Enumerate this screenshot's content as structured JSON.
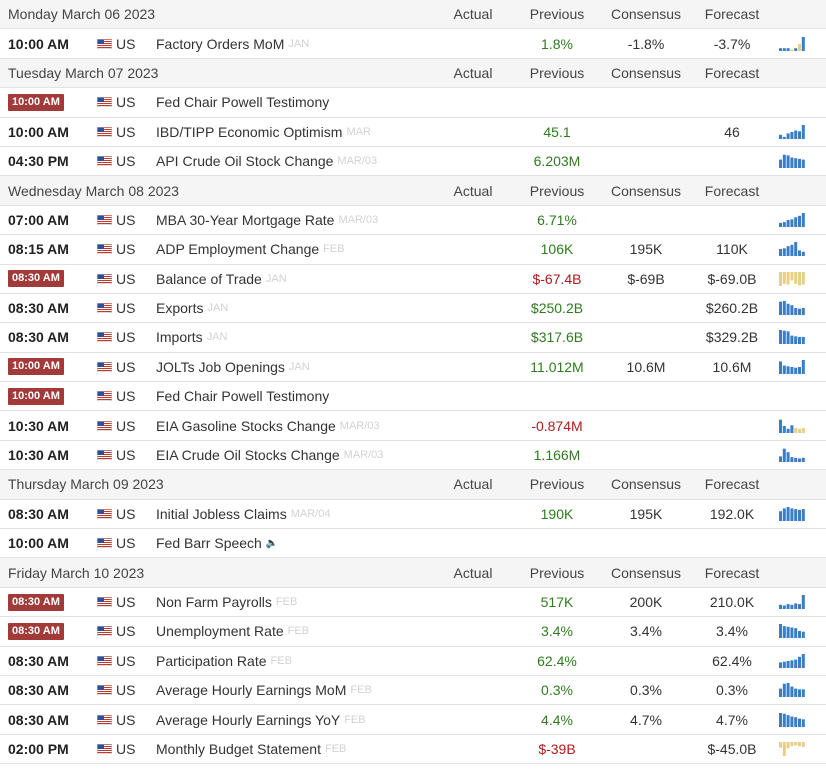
{
  "columns": {
    "actual": "Actual",
    "previous": "Previous",
    "consensus": "Consensus",
    "forecast": "Forecast"
  },
  "days": [
    {
      "title": "Monday March 06 2023",
      "events": [
        {
          "time": "10:00 AM",
          "badge": false,
          "country": "US",
          "name": "Factory Orders MoM",
          "ref": "JAN",
          "previous": "1.8%",
          "previous_tone": "pos",
          "consensus": "-1.8%",
          "forecast": "-3.7%",
          "spark": {
            "values": [
              0.2,
              0.2,
              0.2,
              0.12,
              0.2,
              0.5,
              1.0
            ],
            "colors": [
              "#3b7dc4",
              "#3b7dc4",
              "#3b7dc4",
              "#e9cf86",
              "#3b7dc4",
              "#e9cf86",
              "#3b7dc4"
            ]
          }
        }
      ]
    },
    {
      "title": "Tuesday March 07 2023",
      "events": [
        {
          "time": "10:00 AM",
          "badge": true,
          "country": "US",
          "name": "Fed Chair Powell Testimony",
          "ref": "",
          "previous": "",
          "previous_tone": "",
          "consensus": "",
          "forecast": "",
          "spark": null
        },
        {
          "time": "10:00 AM",
          "badge": false,
          "country": "US",
          "name": "IBD/TIPP Economic Optimism",
          "ref": "MAR",
          "previous": "45.1",
          "previous_tone": "pos",
          "consensus": "",
          "forecast": "46",
          "spark": {
            "values": [
              0.3,
              0.15,
              0.4,
              0.5,
              0.6,
              0.55,
              1.0
            ],
            "colors": [
              "#3b7dc4",
              "#3b7dc4",
              "#3b7dc4",
              "#3b7dc4",
              "#3b7dc4",
              "#3b7dc4",
              "#3b7dc4"
            ]
          }
        },
        {
          "time": "04:30 PM",
          "badge": false,
          "country": "US",
          "name": "API Crude Oil Stock Change",
          "ref": "MAR/03",
          "previous": "6.203M",
          "previous_tone": "pos",
          "consensus": "",
          "forecast": "",
          "spark": {
            "values": [
              0.6,
              0.95,
              0.9,
              0.75,
              0.7,
              0.65,
              0.6
            ],
            "colors": [
              "#3b7dc4",
              "#3b7dc4",
              "#3b7dc4",
              "#3b7dc4",
              "#3b7dc4",
              "#3b7dc4",
              "#3b7dc4"
            ]
          }
        }
      ]
    },
    {
      "title": "Wednesday March 08 2023",
      "events": [
        {
          "time": "07:00 AM",
          "badge": false,
          "country": "US",
          "name": "MBA 30-Year Mortgage Rate",
          "ref": "MAR/03",
          "previous": "6.71%",
          "previous_tone": "pos",
          "consensus": "",
          "forecast": "",
          "spark": {
            "values": [
              0.3,
              0.35,
              0.5,
              0.55,
              0.7,
              0.8,
              1.0
            ],
            "colors": [
              "#3b7dc4",
              "#3b7dc4",
              "#3b7dc4",
              "#3b7dc4",
              "#3b7dc4",
              "#3b7dc4",
              "#3b7dc4"
            ]
          }
        },
        {
          "time": "08:15 AM",
          "badge": false,
          "country": "US",
          "name": "ADP Employment Change",
          "ref": "FEB",
          "previous": "106K",
          "previous_tone": "pos",
          "consensus": "195K",
          "forecast": "110K",
          "spark": {
            "values": [
              0.5,
              0.55,
              0.7,
              0.8,
              1.0,
              0.4,
              0.3
            ],
            "colors": [
              "#3b7dc4",
              "#3b7dc4",
              "#3b7dc4",
              "#3b7dc4",
              "#3b7dc4",
              "#3b7dc4",
              "#3b7dc4"
            ]
          }
        },
        {
          "time": "08:30 AM",
          "badge": true,
          "country": "US",
          "name": "Balance of Trade",
          "ref": "JAN",
          "previous": "$-67.4B",
          "previous_tone": "neg",
          "consensus": "$-69B",
          "forecast": "$-69.0B",
          "spark": {
            "values": [
              1.0,
              0.85,
              0.9,
              0.6,
              0.85,
              0.95,
              0.9
            ],
            "colors": [
              "#e9cf86",
              "#e9cf86",
              "#e9cf86",
              "#e9cf86",
              "#e9cf86",
              "#e9cf86",
              "#e9cf86"
            ],
            "downward": true
          }
        },
        {
          "time": "08:30 AM",
          "badge": false,
          "country": "US",
          "name": "Exports",
          "ref": "JAN",
          "previous": "$250.2B",
          "previous_tone": "pos",
          "consensus": "",
          "forecast": "$260.2B",
          "spark": {
            "values": [
              0.95,
              1.0,
              0.8,
              0.7,
              0.5,
              0.45,
              0.5
            ],
            "colors": [
              "#3b7dc4",
              "#3b7dc4",
              "#3b7dc4",
              "#3b7dc4",
              "#3b7dc4",
              "#3b7dc4",
              "#3b7dc4"
            ]
          }
        },
        {
          "time": "08:30 AM",
          "badge": false,
          "country": "US",
          "name": "Imports",
          "ref": "JAN",
          "previous": "$317.6B",
          "previous_tone": "pos",
          "consensus": "",
          "forecast": "$329.2B",
          "spark": {
            "values": [
              1.0,
              0.95,
              0.9,
              0.6,
              0.55,
              0.5,
              0.5
            ],
            "colors": [
              "#3b7dc4",
              "#3b7dc4",
              "#3b7dc4",
              "#3b7dc4",
              "#3b7dc4",
              "#3b7dc4",
              "#3b7dc4"
            ]
          }
        },
        {
          "time": "10:00 AM",
          "badge": true,
          "country": "US",
          "name": "JOLTs Job Openings",
          "ref": "JAN",
          "previous": "11.012M",
          "previous_tone": "pos",
          "consensus": "10.6M",
          "forecast": "10.6M",
          "spark": {
            "values": [
              0.9,
              0.6,
              0.55,
              0.5,
              0.45,
              0.5,
              1.0
            ],
            "colors": [
              "#3b7dc4",
              "#3b7dc4",
              "#3b7dc4",
              "#3b7dc4",
              "#3b7dc4",
              "#3b7dc4",
              "#3b7dc4"
            ]
          }
        },
        {
          "time": "10:00 AM",
          "badge": true,
          "country": "US",
          "name": "Fed Chair Powell Testimony",
          "ref": "",
          "previous": "",
          "previous_tone": "",
          "consensus": "",
          "forecast": "",
          "spark": null
        },
        {
          "time": "10:30 AM",
          "badge": false,
          "country": "US",
          "name": "EIA Gasoline Stocks Change",
          "ref": "MAR/03",
          "previous": "-0.874M",
          "previous_tone": "neg",
          "consensus": "",
          "forecast": "",
          "spark": {
            "values": [
              0.95,
              0.5,
              0.3,
              0.55,
              0.35,
              0.3,
              0.35
            ],
            "colors": [
              "#3b7dc4",
              "#3b7dc4",
              "#3b7dc4",
              "#3b7dc4",
              "#e9cf86",
              "#e9cf86",
              "#e9cf86"
            ]
          }
        },
        {
          "time": "10:30 AM",
          "badge": false,
          "country": "US",
          "name": "EIA Crude Oil Stocks Change",
          "ref": "MAR/03",
          "previous": "1.166M",
          "previous_tone": "pos",
          "consensus": "",
          "forecast": "",
          "spark": {
            "values": [
              0.4,
              0.95,
              0.7,
              0.35,
              0.3,
              0.25,
              0.3
            ],
            "colors": [
              "#3b7dc4",
              "#3b7dc4",
              "#3b7dc4",
              "#3b7dc4",
              "#3b7dc4",
              "#3b7dc4",
              "#3b7dc4"
            ]
          }
        }
      ]
    },
    {
      "title": "Thursday March 09 2023",
      "events": [
        {
          "time": "08:30 AM",
          "badge": false,
          "country": "US",
          "name": "Initial Jobless Claims",
          "ref": "MAR/04",
          "previous": "190K",
          "previous_tone": "pos",
          "consensus": "195K",
          "forecast": "192.0K",
          "spark": {
            "values": [
              0.7,
              0.9,
              1.0,
              0.9,
              0.85,
              0.8,
              0.85
            ],
            "colors": [
              "#3b7dc4",
              "#3b7dc4",
              "#3b7dc4",
              "#3b7dc4",
              "#3b7dc4",
              "#3b7dc4",
              "#3b7dc4"
            ]
          }
        },
        {
          "time": "10:00 AM",
          "badge": false,
          "country": "US",
          "name": "Fed Barr Speech",
          "ref": "",
          "speaker": true,
          "previous": "",
          "previous_tone": "",
          "consensus": "",
          "forecast": "",
          "spark": null
        }
      ]
    },
    {
      "title": "Friday March 10 2023",
      "events": [
        {
          "time": "08:30 AM",
          "badge": true,
          "country": "US",
          "name": "Non Farm Payrolls",
          "ref": "FEB",
          "previous": "517K",
          "previous_tone": "pos",
          "consensus": "200K",
          "forecast": "210.0K",
          "spark": {
            "values": [
              0.3,
              0.25,
              0.35,
              0.3,
              0.4,
              0.35,
              1.0
            ],
            "colors": [
              "#3b7dc4",
              "#3b7dc4",
              "#3b7dc4",
              "#3b7dc4",
              "#3b7dc4",
              "#3b7dc4",
              "#3b7dc4"
            ]
          }
        },
        {
          "time": "08:30 AM",
          "badge": true,
          "country": "US",
          "name": "Unemployment Rate",
          "ref": "FEB",
          "previous": "3.4%",
          "previous_tone": "pos",
          "consensus": "3.4%",
          "forecast": "3.4%",
          "spark": {
            "values": [
              1.0,
              0.85,
              0.8,
              0.75,
              0.7,
              0.5,
              0.45
            ],
            "colors": [
              "#3b7dc4",
              "#3b7dc4",
              "#3b7dc4",
              "#3b7dc4",
              "#3b7dc4",
              "#3b7dc4",
              "#3b7dc4"
            ]
          }
        },
        {
          "time": "08:30 AM",
          "badge": false,
          "country": "US",
          "name": "Participation Rate",
          "ref": "FEB",
          "previous": "62.4%",
          "previous_tone": "pos",
          "consensus": "",
          "forecast": "62.4%",
          "spark": {
            "values": [
              0.4,
              0.45,
              0.5,
              0.55,
              0.6,
              0.8,
              1.0
            ],
            "colors": [
              "#3b7dc4",
              "#3b7dc4",
              "#3b7dc4",
              "#3b7dc4",
              "#3b7dc4",
              "#3b7dc4",
              "#3b7dc4"
            ]
          }
        },
        {
          "time": "08:30 AM",
          "badge": false,
          "country": "US",
          "name": "Average Hourly Earnings MoM",
          "ref": "FEB",
          "previous": "0.3%",
          "previous_tone": "pos",
          "consensus": "0.3%",
          "forecast": "0.3%",
          "spark": {
            "values": [
              0.6,
              0.95,
              1.0,
              0.75,
              0.6,
              0.55,
              0.55
            ],
            "colors": [
              "#3b7dc4",
              "#3b7dc4",
              "#3b7dc4",
              "#3b7dc4",
              "#3b7dc4",
              "#3b7dc4",
              "#3b7dc4"
            ]
          }
        },
        {
          "time": "08:30 AM",
          "badge": false,
          "country": "US",
          "name": "Average Hourly Earnings YoY",
          "ref": "FEB",
          "previous": "4.4%",
          "previous_tone": "pos",
          "consensus": "4.7%",
          "forecast": "4.7%",
          "spark": {
            "values": [
              1.0,
              0.95,
              0.85,
              0.75,
              0.7,
              0.6,
              0.55
            ],
            "colors": [
              "#3b7dc4",
              "#3b7dc4",
              "#3b7dc4",
              "#3b7dc4",
              "#3b7dc4",
              "#3b7dc4",
              "#3b7dc4"
            ]
          }
        },
        {
          "time": "02:00 PM",
          "badge": false,
          "country": "US",
          "name": "Monthly Budget Statement",
          "ref": "FEB",
          "previous": "$-39B",
          "previous_tone": "neg",
          "consensus": "",
          "forecast": "$-45.0B",
          "spark": {
            "values": [
              0.4,
              1.0,
              0.45,
              0.3,
              0.25,
              0.3,
              0.35
            ],
            "colors": [
              "#e9cf86",
              "#e9cf86",
              "#e9cf86",
              "#e9cf86",
              "#e9cf86",
              "#e9cf86",
              "#e9cf86"
            ],
            "downward": true
          }
        }
      ]
    }
  ]
}
